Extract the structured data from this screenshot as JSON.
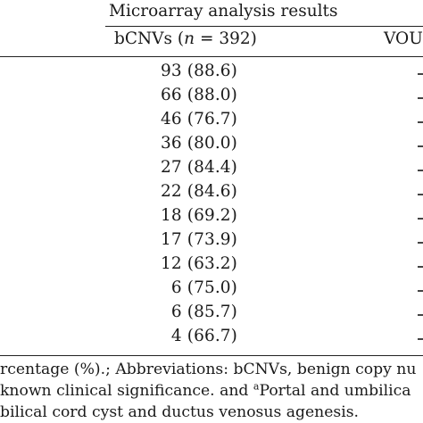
{
  "group_header": "Microarray analysis results",
  "columns": {
    "bcnv_prefix": "bCNVs (",
    "bcnv_n": "n",
    "bcnv_suffix": " = 392)",
    "vous": "VOU"
  },
  "rows": [
    {
      "bcnv": "93 (88.6)"
    },
    {
      "bcnv": "66 (88.0)"
    },
    {
      "bcnv": "46 (76.7)"
    },
    {
      "bcnv": "36 (80.0)"
    },
    {
      "bcnv": "27 (84.4)"
    },
    {
      "bcnv": "22 (84.6)"
    },
    {
      "bcnv": "18 (69.2)"
    },
    {
      "bcnv": "17 (73.9)"
    },
    {
      "bcnv": "12 (63.2)"
    },
    {
      "bcnv": "6 (75.0)"
    },
    {
      "bcnv": "6 (85.7)"
    },
    {
      "bcnv": "4 (66.7)"
    }
  ],
  "footnotes": {
    "line1": "rcentage (%).; Abbreviations: bCNVs, benign copy nu",
    "line2_prefix": "known clinical significance. and ",
    "line2_sup": "a",
    "line2_suffix": "Portal and umbilica",
    "line3": "bilical cord cyst and ductus venosus agenesis."
  }
}
